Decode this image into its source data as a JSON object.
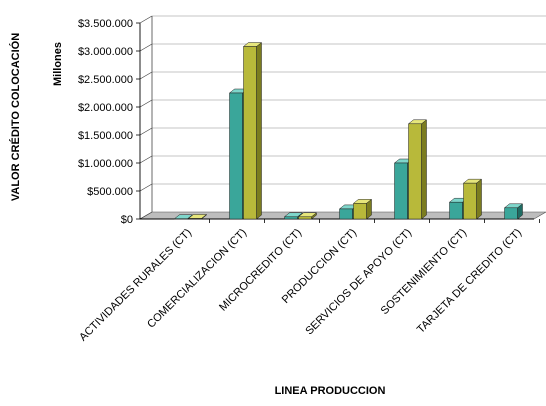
{
  "chart_data": {
    "type": "bar",
    "categories": [
      "ACTIVIDADES RURALES (CT)",
      "COMERCIALIZACION (CT)",
      "MICROCREDITO (CT)",
      "PRODUCCION (CT)",
      "SERVICIOS DE APOYO (CT)",
      "SOSTENIMIENTO (CT)",
      "TARJETA DE CREDITO (CT)"
    ],
    "series": [
      {
        "values": [
          5,
          2250,
          40,
          180,
          1000,
          300,
          200
        ]
      },
      {
        "values": [
          10,
          3080,
          40,
          280,
          1700,
          640,
          0
        ]
      }
    ],
    "xlabel": "LINEA PRODUCCION",
    "ylabel": "VALOR CRÉDITO COLOCACIÓN",
    "yunit_label": "Millones",
    "ylim": [
      0,
      3500
    ],
    "yticks": [
      0,
      500,
      1000,
      1500,
      2000,
      2500,
      3000,
      3500
    ],
    "ytick_labels": [
      "$0",
      "$500.000",
      "$1.000.000",
      "$1.500.000",
      "$2.000.000",
      "$2.500.000",
      "$3.000.000",
      "$3.500.000"
    ],
    "grid": true,
    "legend": "none",
    "colors": {
      "series_front": [
        "#3aa69a",
        "#b8b93a"
      ],
      "series_top": [
        "#7fd6cb",
        "#e6e67c"
      ],
      "series_side": [
        "#1f6c63",
        "#7b7c1f"
      ],
      "grid": "#b0b0b0",
      "wall": "#ffffff",
      "floor": "#bdbdbd"
    }
  }
}
